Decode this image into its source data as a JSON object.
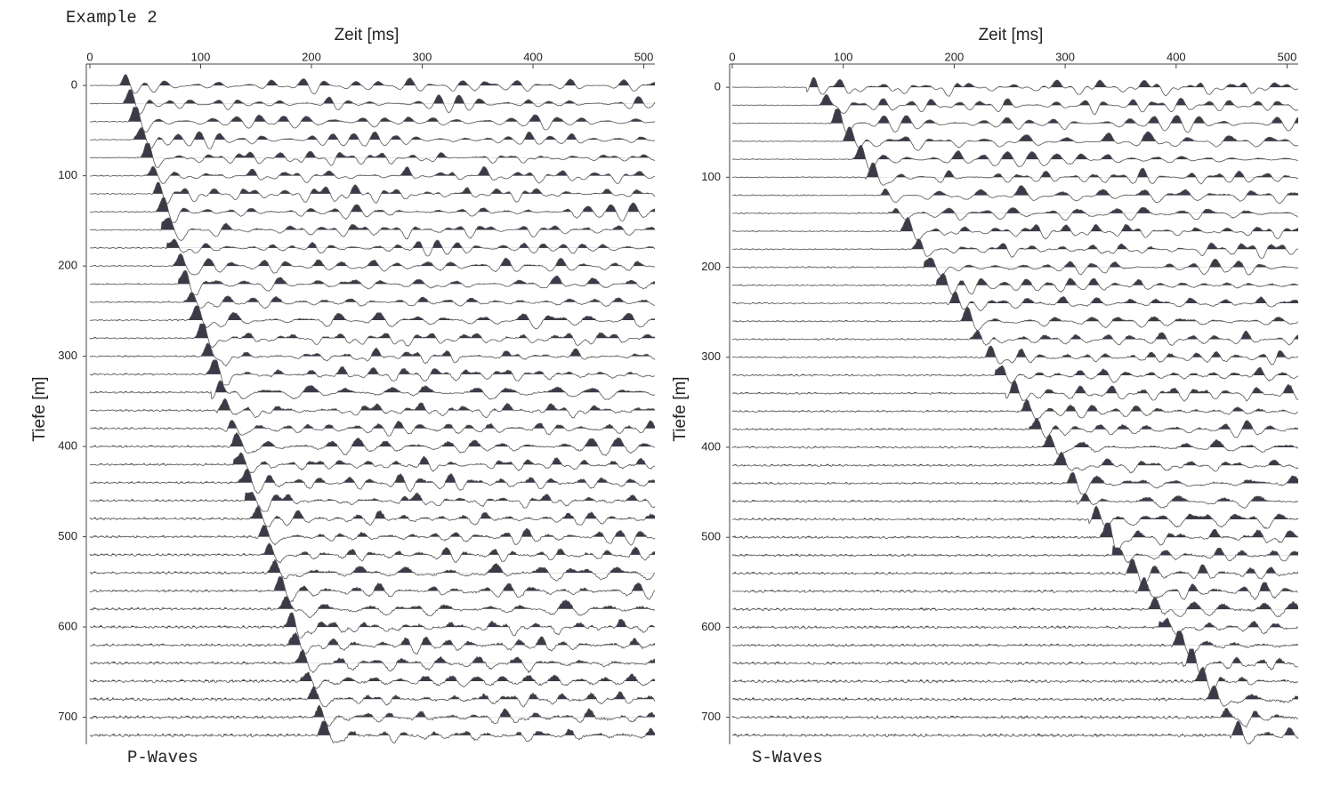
{
  "heading": "Example 2",
  "chart_data": [
    {
      "type": "wiggle",
      "xlabel": "Zeit [ms]",
      "ylabel": "Tiefe [m]",
      "caption": "P-Waves",
      "color": "#3a3a48",
      "xlim": [
        0,
        510
      ],
      "ylim": [
        -10,
        730
      ],
      "y_inverted": true,
      "xticks": [
        0,
        100,
        200,
        300,
        400,
        500
      ],
      "yticks": [
        0,
        100,
        200,
        300,
        400,
        500,
        600,
        700
      ],
      "y": [
        0,
        20,
        40,
        60,
        80,
        100,
        120,
        140,
        160,
        180,
        200,
        220,
        240,
        260,
        280,
        300,
        320,
        340,
        360,
        380,
        400,
        420,
        440,
        460,
        480,
        500,
        520,
        540,
        560,
        580,
        600,
        620,
        640,
        660,
        680,
        700,
        720
      ],
      "values": [
        28,
        33,
        38,
        43,
        48,
        53,
        58,
        63,
        68,
        73,
        78,
        83,
        88,
        93,
        98,
        103,
        108,
        113,
        118,
        123,
        128,
        133,
        138,
        143,
        148,
        153,
        158,
        163,
        168,
        173,
        178,
        183,
        188,
        193,
        198,
        203,
        208
      ]
    },
    {
      "type": "wiggle",
      "xlabel": "Zeit [ms]",
      "ylabel": "Tiefe [m]",
      "caption": "S-Waves",
      "color": "#3a3a48",
      "xlim": [
        0,
        510
      ],
      "ylim": [
        -10,
        730
      ],
      "y_inverted": true,
      "xticks": [
        0,
        100,
        200,
        300,
        400,
        500
      ],
      "yticks": [
        0,
        100,
        200,
        300,
        400,
        500,
        600,
        700
      ],
      "y": [
        0,
        20,
        40,
        60,
        80,
        100,
        120,
        140,
        160,
        180,
        200,
        220,
        240,
        260,
        280,
        300,
        320,
        340,
        360,
        380,
        400,
        420,
        440,
        460,
        480,
        500,
        520,
        540,
        560,
        580,
        600,
        620,
        640,
        660,
        680,
        700,
        720
      ],
      "values": [
        70,
        81,
        91,
        102,
        112,
        123,
        134,
        144,
        155,
        165,
        176,
        187,
        197,
        208,
        218,
        229,
        240,
        250,
        261,
        271,
        282,
        293,
        303,
        314,
        324,
        335,
        346,
        356,
        367,
        377,
        388,
        399,
        409,
        420,
        430,
        441,
        452
      ]
    }
  ]
}
